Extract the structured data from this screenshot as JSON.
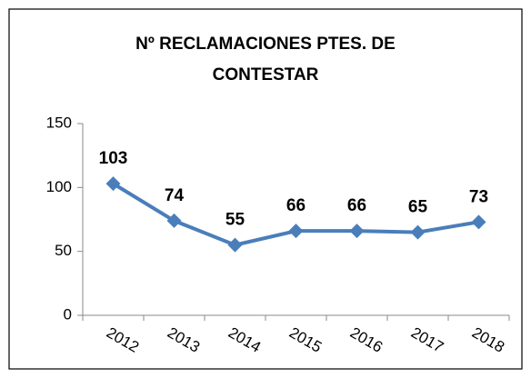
{
  "chart_data": {
    "type": "line",
    "title": "Nº RECLAMACIONES PTES. DE CONTESTAR",
    "categories": [
      "2012",
      "2013",
      "2014",
      "2015",
      "2016",
      "2017",
      "2018"
    ],
    "values": [
      103,
      74,
      55,
      66,
      66,
      65,
      73
    ],
    "color": "#4a7ebb",
    "ylim": [
      0,
      150
    ],
    "yticks": [
      0,
      50,
      100,
      150
    ],
    "grid": false
  }
}
